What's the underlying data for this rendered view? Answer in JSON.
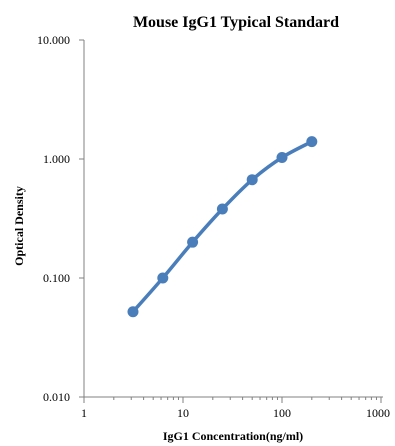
{
  "chart_data": {
    "type": "line",
    "title": "Mouse IgG1 Typical Standard",
    "xlabel": "IgG1 Concentration(ng/ml)",
    "ylabel": "Optical Density",
    "x_scale": "log",
    "y_scale": "log",
    "xlim": [
      1,
      1000
    ],
    "ylim": [
      0.01,
      10
    ],
    "x_ticks": [
      "1",
      "10",
      "100",
      "1000"
    ],
    "y_ticks": [
      "10.000",
      "1.000",
      "0.100",
      "0.010"
    ],
    "grid": false,
    "legend": "none",
    "series_color": "#4a7ebb",
    "series": [
      {
        "x": [
          3.125,
          6.25,
          12.5,
          25,
          50,
          100,
          200
        ],
        "y": [
          0.052,
          0.1,
          0.2,
          0.38,
          0.67,
          1.03,
          1.4
        ]
      }
    ]
  }
}
